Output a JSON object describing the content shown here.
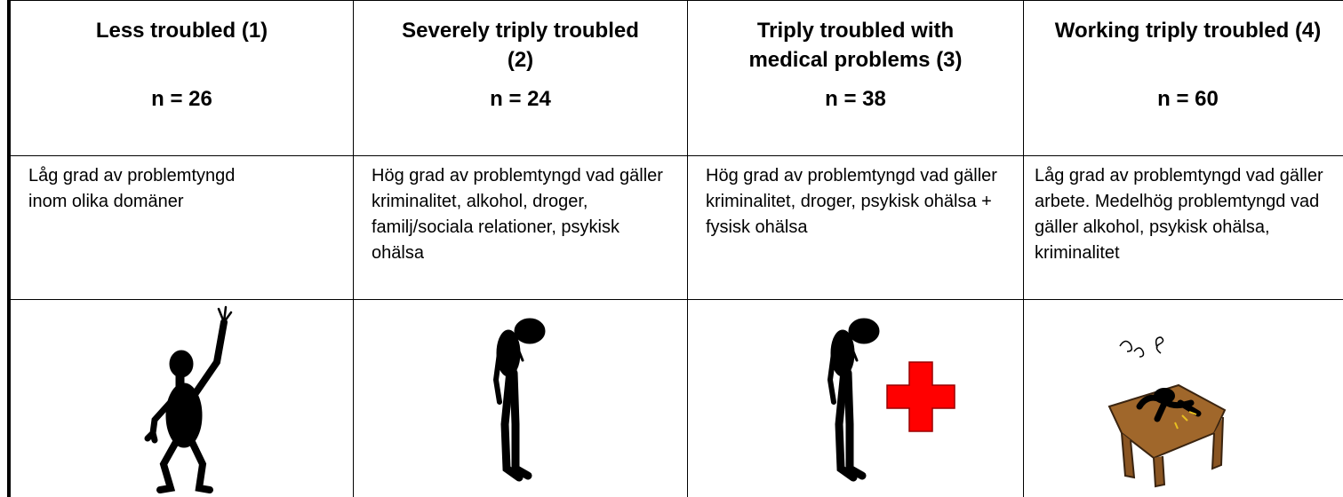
{
  "table": {
    "columns": [
      {
        "title": "Less troubled (1)",
        "n": "n = 26",
        "description": "Låg grad av problemtyngd inom olika domäner"
      },
      {
        "title": "Severely triply troubled (2)",
        "n": "n = 24",
        "description": "Hög grad av problemtyngd vad gäller kriminalitet, alkohol, droger, familj/sociala relationer, psykisk ohälsa"
      },
      {
        "title": "Triply troubled with medical problems (3)",
        "n": "n = 38",
        "description": "Hög grad av problemtyngd vad gäller kriminalitet, droger, psykisk ohälsa + fysisk ohälsa"
      },
      {
        "title": "Working triply troubled (4)",
        "n": "n = 60",
        "description": "Låg grad av problemtyngd vad gäller arbete. Medelhög problemtyngd vad gäller alkohol, psykisk ohälsa, kriminalitet"
      }
    ]
  }
}
